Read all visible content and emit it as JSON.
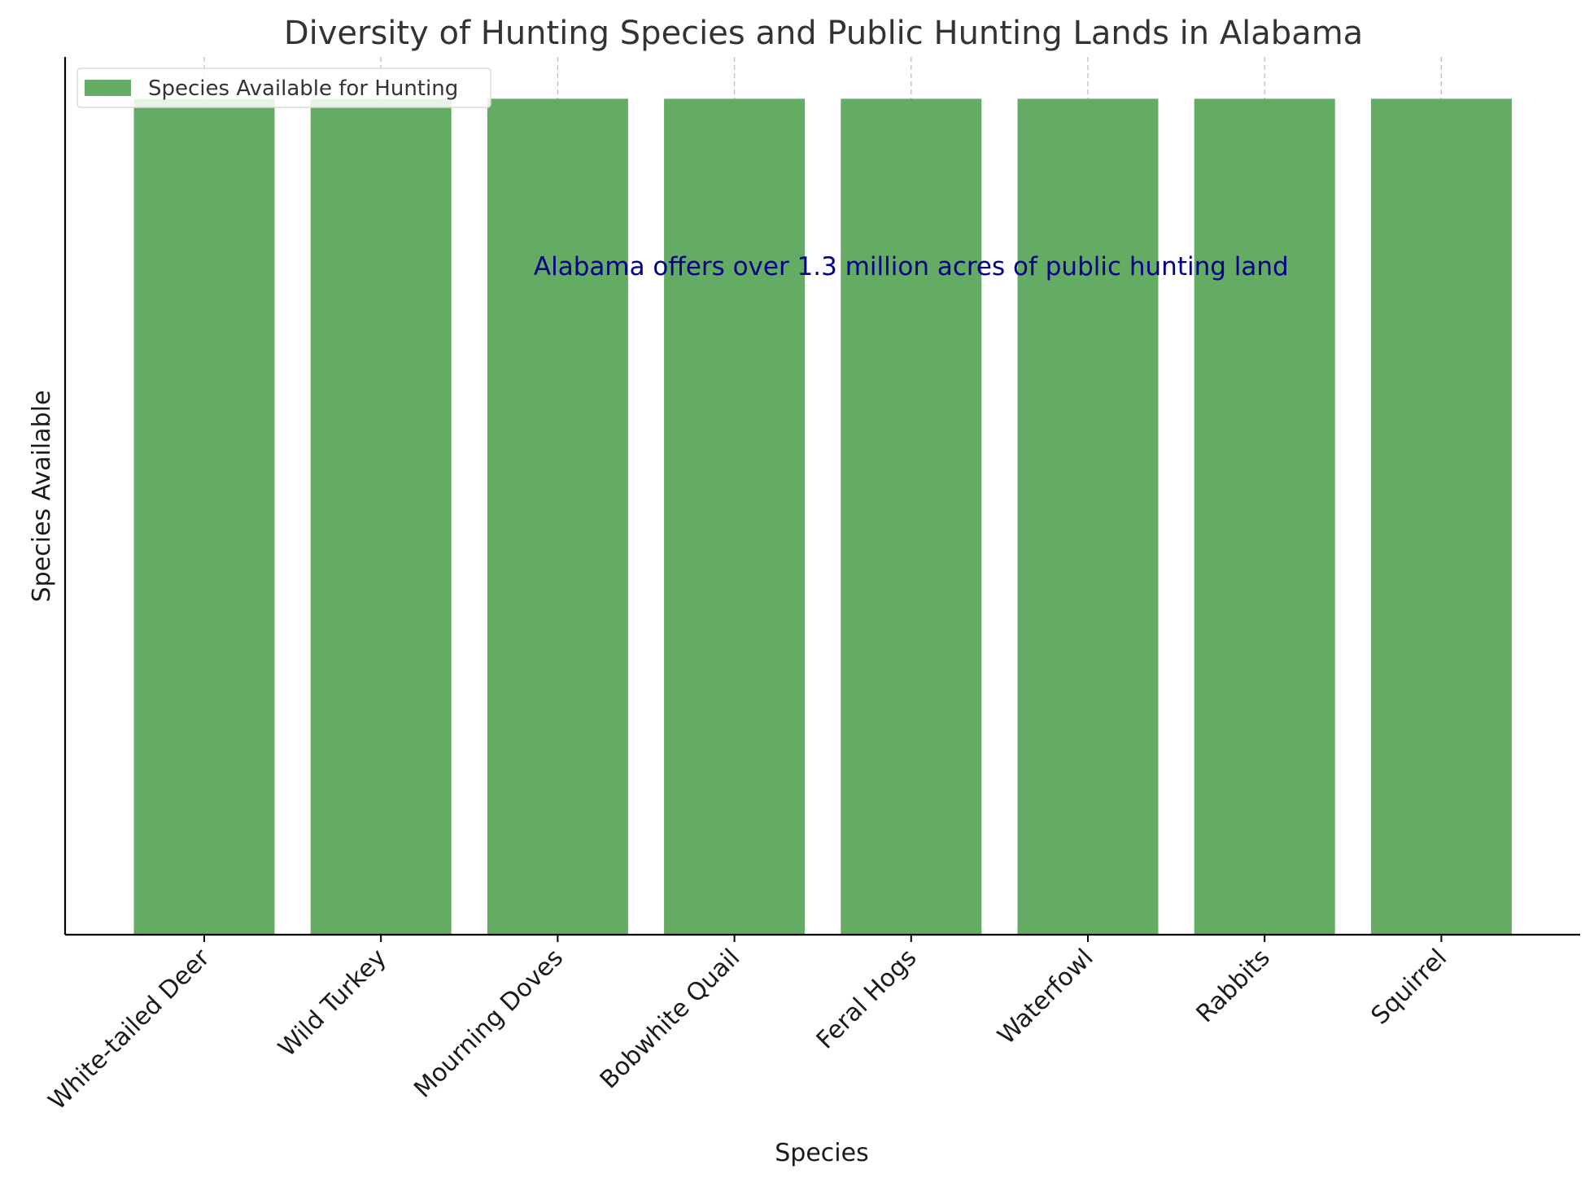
{
  "chart_data": {
    "type": "bar",
    "title": "Diversity of Hunting Species and Public Hunting Lands in Alabama",
    "xlabel": "Species",
    "ylabel": "Species Available",
    "categories": [
      "White-tailed Deer",
      "Wild Turkey",
      "Mourning Doves",
      "Bobwhite Quail",
      "Feral Hogs",
      "Waterfowl",
      "Rabbits",
      "Squirrel"
    ],
    "series": [
      {
        "name": "Species Available for Hunting",
        "values": [
          1,
          1,
          1,
          1,
          1,
          1,
          1,
          1
        ],
        "color": "#64ac64"
      }
    ],
    "ylim": [
      0,
      1.05
    ],
    "y_ticks_visible": false,
    "grid": {
      "x": true,
      "y": false,
      "style": "dashed",
      "color": "#bfbfbf"
    },
    "legend": {
      "placement": "top-left"
    },
    "annotation": {
      "text": "Alabama offers over 1.3 million acres of public hunting land",
      "color": "#00008b",
      "x_category_center": 4.0,
      "y": 0.8
    },
    "x_tick_rotation_deg": 45
  }
}
